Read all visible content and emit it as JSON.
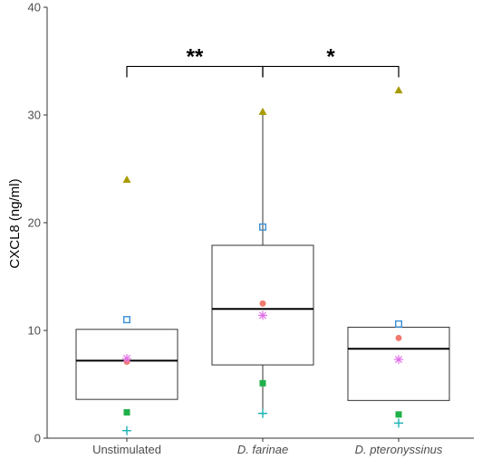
{
  "chart_data": {
    "type": "box",
    "ylabel": "CXCL8 (ng/ml)",
    "ylim": [
      0,
      40
    ],
    "yticks": [
      0,
      10,
      20,
      30,
      40
    ],
    "categories": [
      {
        "label": "Unstimulated",
        "italic": false
      },
      {
        "label": "D. farinae",
        "italic": true
      },
      {
        "label": "D. pteronyssinus",
        "italic": true
      }
    ],
    "boxes": [
      {
        "q1": 3.6,
        "median": 7.2,
        "q3": 10.1,
        "whisker_low": 3.6,
        "whisker_high": 10.1
      },
      {
        "q1": 6.8,
        "median": 12.0,
        "q3": 17.9,
        "whisker_low": 2.3,
        "whisker_high": 30.3
      },
      {
        "q1": 3.5,
        "median": 8.3,
        "q3": 10.3,
        "whisker_low": 3.5,
        "whisker_high": 10.3
      }
    ],
    "point_series": [
      {
        "marker": "triangle",
        "color": "#a89a00",
        "values": [
          24.0,
          30.3,
          32.3
        ]
      },
      {
        "marker": "open-square",
        "color": "#3a8fd6",
        "values": [
          11.0,
          19.6,
          10.6
        ]
      },
      {
        "marker": "circle",
        "color": "#f07a70",
        "values": [
          7.1,
          12.5,
          9.3
        ]
      },
      {
        "marker": "asterisk",
        "color": "#e070e8",
        "values": [
          7.4,
          11.4,
          7.3
        ]
      },
      {
        "marker": "filled-square",
        "color": "#1fb04a",
        "values": [
          2.4,
          5.1,
          2.2
        ]
      },
      {
        "marker": "plus",
        "color": "#1bb3b3",
        "values": [
          0.7,
          2.3,
          1.4
        ]
      }
    ],
    "significance": [
      {
        "from": 0,
        "to": 1,
        "label": "**"
      },
      {
        "from": 1,
        "to": 2,
        "label": "*"
      }
    ],
    "bracket_y": 34.5,
    "bracket_tick_low": 33.5
  }
}
